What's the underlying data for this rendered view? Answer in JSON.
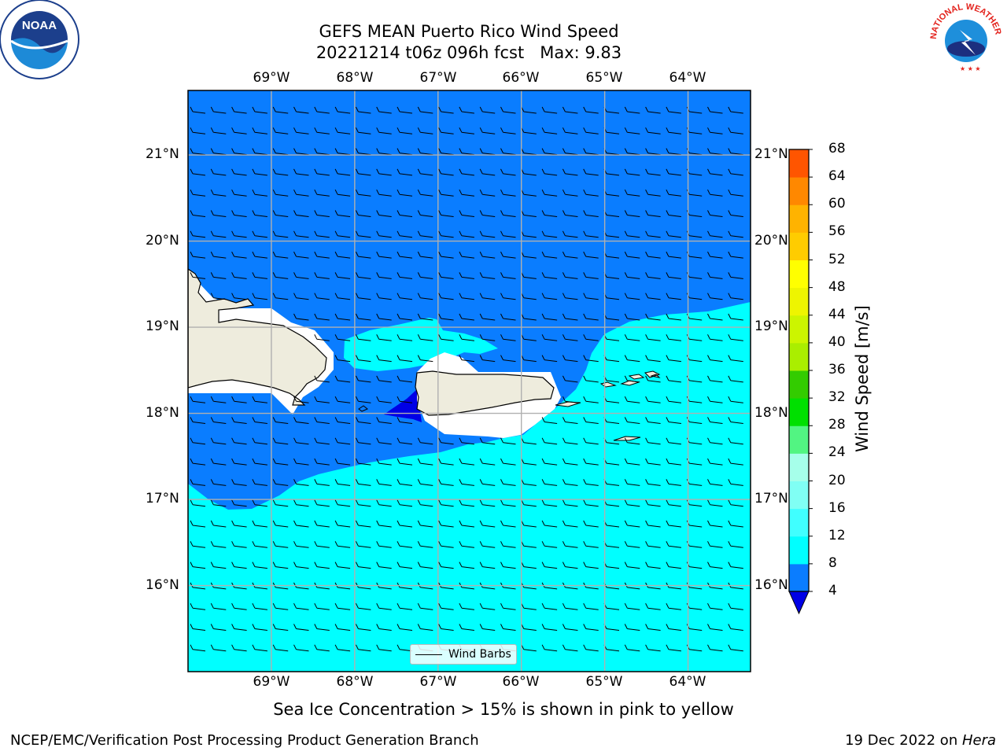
{
  "title": {
    "line1": "GEFS MEAN Puerto Rico Wind Speed",
    "line2": "20221214 t06z 096h fcst   Max: 9.83"
  },
  "map": {
    "lon_labels": [
      "69°W",
      "68°W",
      "67°W",
      "66°W",
      "65°W",
      "64°W"
    ],
    "lat_labels": [
      "21°N",
      "20°N",
      "19°N",
      "18°N",
      "17°N",
      "16°N"
    ],
    "lon_range": [
      -70.0,
      -63.25
    ],
    "lat_range": [
      15.0,
      21.75
    ],
    "legend": "Wind Barbs",
    "colors": {
      "wind_4_8": "#0a7dff",
      "wind_8_12": "#00ffff",
      "wind_lt_4": "#0000e6",
      "land": "#eeecdd"
    }
  },
  "colorbar": {
    "title": "Wind Speed [m/s]",
    "levels": [
      4,
      8,
      12,
      16,
      20,
      24,
      28,
      32,
      36,
      40,
      44,
      48,
      52,
      56,
      60,
      64,
      68
    ],
    "colors": [
      "#0a7dff",
      "#00ffff",
      "#40ffff",
      "#80fff4",
      "#a6ffea",
      "#52f582",
      "#00e000",
      "#33cc00",
      "#aaee00",
      "#ccf500",
      "#eef500",
      "#ffff00",
      "#ffcc00",
      "#ffb300",
      "#ff8800",
      "#ff5500",
      "#ff2200",
      "#ff0000"
    ],
    "extend_color": "#0000e6"
  },
  "caption": "Sea Ice Concentration > 15% is shown in pink to yellow",
  "footer": {
    "left": "NCEP/EMC/Verification Post Processing Product Generation Branch",
    "date": "19 Dec 2022 on ",
    "machine": "Hera"
  },
  "logos": {
    "noaa": "NOAA",
    "nws": "NATIONAL WEATHER SERVICE"
  }
}
